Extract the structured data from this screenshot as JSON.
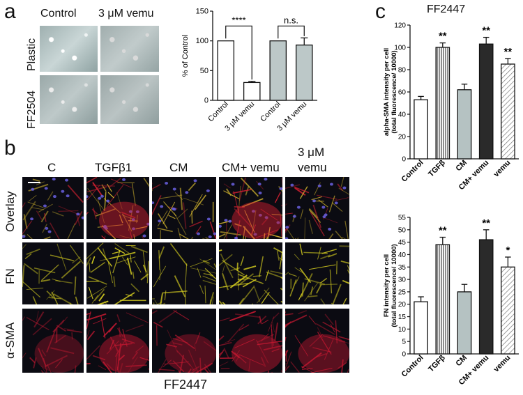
{
  "panel_a": {
    "letter": "a",
    "col_labels": [
      "Control",
      "3 μM vemu"
    ],
    "row_labels": [
      "Plastic",
      "FF2504"
    ]
  },
  "panel_b": {
    "letter": "b",
    "col_labels": [
      "C",
      "TGFβ1",
      "CM",
      "CM+ vemu",
      "3 μM",
      "vemu"
    ],
    "row_labels": [
      "Overlay",
      "FN",
      "α-SMA"
    ],
    "caption": "FF2447",
    "colors": {
      "overlay_yellow": "#e0c030",
      "overlay_red": "#d02030",
      "nuclei_blue": "#6a60e0",
      "fn_yellow": "#d8d020",
      "sma_red": "#c01830"
    }
  },
  "panel_c": {
    "letter": "c",
    "title": "FF2447"
  },
  "chart_data": [
    {
      "type": "bar",
      "categories": [
        "Control",
        "3 μM vemu",
        "Control",
        "3 μM vemu"
      ],
      "values": [
        100,
        30,
        100,
        93
      ],
      "errors": [
        0,
        2,
        0,
        12
      ],
      "fills": [
        "#ffffff",
        "#ffffff",
        "#bcc8c8",
        "#bcc8c8"
      ],
      "ylabel": "% of Control",
      "ylim": [
        0,
        150
      ],
      "yticks": [
        "0",
        "50",
        "100",
        "150"
      ],
      "annotations": [
        "****",
        "n.s."
      ]
    },
    {
      "type": "bar",
      "categories": [
        "Control",
        "TGFβ",
        "CM",
        "CM+ vemu",
        "vemu"
      ],
      "values": [
        53,
        100,
        62,
        103,
        85
      ],
      "errors": [
        3,
        4,
        5,
        6,
        5
      ],
      "fills": [
        "#ffffff",
        "hatch-vertical",
        "#b5c2c2",
        "#2a2a2a",
        "hatch-diagonal"
      ],
      "ylabel_lines": [
        "alpha-SMA intensity per cell",
        "(total fluorescence/ 10000)"
      ],
      "ylim": [
        0,
        120
      ],
      "yticks": [
        "0",
        "20",
        "40",
        "60",
        "80",
        "100",
        "120"
      ],
      "significance": [
        "",
        "**",
        "",
        "**",
        "**"
      ]
    },
    {
      "type": "bar",
      "categories": [
        "Control",
        "TGFβ",
        "CM",
        "CM+ vemu",
        "vemu"
      ],
      "values": [
        21,
        44,
        25,
        46,
        35
      ],
      "errors": [
        2,
        3,
        3,
        4,
        4
      ],
      "fills": [
        "#ffffff",
        "hatch-vertical",
        "#b5c2c2",
        "#2a2a2a",
        "hatch-diagonal"
      ],
      "ylabel_lines": [
        "FN intensity per cell",
        "(total fluorescence/ 10000)"
      ],
      "ylim": [
        0,
        55
      ],
      "yticks": [
        "0",
        "5",
        "10",
        "15",
        "20",
        "25",
        "30",
        "35",
        "40",
        "45",
        "50",
        "55"
      ],
      "significance": [
        "",
        "**",
        "",
        "**",
        "*"
      ]
    }
  ]
}
